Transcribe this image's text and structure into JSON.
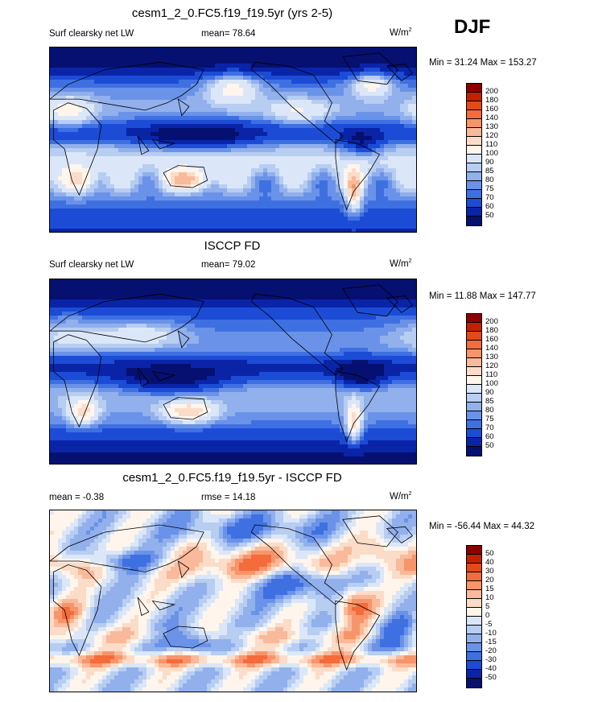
{
  "season": "DJF",
  "panels": [
    {
      "title": "cesm1_2_0.FC5.f19_f19.5yr (yrs 2-5)",
      "left_label": "Surf clearsky net LW",
      "mid_label": "mean=  78.64",
      "units_base": "W/m",
      "units_sup": "2",
      "minmax": "Min =  31.24 Max = 153.27",
      "levels": [
        "200",
        "180",
        "160",
        "140",
        "130",
        "120",
        "110",
        "100",
        "90",
        "85",
        "80",
        "75",
        "70",
        "60",
        "50"
      ],
      "colors": [
        "#8c0000",
        "#c42000",
        "#e24a1a",
        "#f46b3c",
        "#f7956a",
        "#f9b99a",
        "#fbdcc8",
        "#fff5ec",
        "#dbe7f8",
        "#b7cdf1",
        "#91b0ec",
        "#6a92e8",
        "#3f70e2",
        "#1c4cd6",
        "#0a24a8",
        "#061070"
      ],
      "field": "model"
    },
    {
      "title": "ISCCP FD",
      "left_label": "Surf clearsky net LW",
      "mid_label": "mean=  79.02",
      "units_base": "W/m",
      "units_sup": "2",
      "minmax": "Min =  11.88 Max = 147.77",
      "levels": [
        "200",
        "180",
        "160",
        "140",
        "130",
        "120",
        "110",
        "100",
        "90",
        "85",
        "80",
        "75",
        "70",
        "60",
        "50"
      ],
      "colors": [
        "#8c0000",
        "#c42000",
        "#e24a1a",
        "#f46b3c",
        "#f7956a",
        "#f9b99a",
        "#fbdcc8",
        "#fff5ec",
        "#dbe7f8",
        "#b7cdf1",
        "#91b0ec",
        "#6a92e8",
        "#3f70e2",
        "#1c4cd6",
        "#0a24a8",
        "#061070"
      ],
      "field": "obs"
    },
    {
      "title": "cesm1_2_0.FC5.f19_f19.5yr - ISCCP FD",
      "left_label": "mean =  -0.38",
      "mid_label": "rmse =  14.18",
      "units_base": "W/m",
      "units_sup": "2",
      "minmax": "Min = -56.44 Max =  44.32",
      "levels": [
        "50",
        "40",
        "30",
        "20",
        "15",
        "10",
        "5",
        "0",
        "-5",
        "-10",
        "-15",
        "-20",
        "-30",
        "-40",
        "-50"
      ],
      "colors": [
        "#8c0000",
        "#c42000",
        "#e24a1a",
        "#f46b3c",
        "#f7956a",
        "#f9b99a",
        "#fbdcc8",
        "#fff5ec",
        "#dbe7f8",
        "#b7cdf1",
        "#91b0ec",
        "#6a92e8",
        "#3f70e2",
        "#1c4cd6",
        "#0a24a8",
        "#061070"
      ],
      "field": "diff"
    }
  ]
}
